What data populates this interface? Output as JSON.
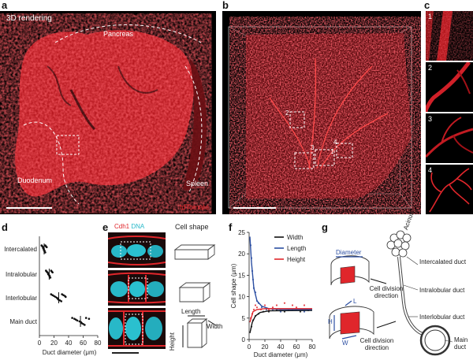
{
  "panels": {
    "a": {
      "label": "a",
      "title": "3D rendering",
      "pancreas": "Pancreas",
      "duodenum": "Duodenum",
      "spleen": "Spleen",
      "marker": "tdTomato"
    },
    "b": {
      "label": "b",
      "roi1": "1",
      "roi2": "2",
      "roi3": "3",
      "roi4": "4"
    },
    "c": {
      "label": "c",
      "insets": [
        "1",
        "2",
        "3",
        "4"
      ]
    },
    "d": {
      "label": "d"
    },
    "e": {
      "label": "e",
      "stain_cdh1": "Cdh1",
      "stain_dna": "DNA",
      "cell_shape": "Cell shape",
      "length": "Length",
      "width": "Width",
      "height": "Height"
    },
    "f": {
      "label": "f"
    },
    "g": {
      "label": "g",
      "diameter": "Diameter",
      "division1": "Cell division direction",
      "division2": "Cell division direction",
      "L": "L",
      "H": "H",
      "W": "W",
      "acinus": "Acinus",
      "intercalated": "Intercalated duct",
      "intralobular": "Intralobular duct",
      "interlobular": "Interlobular duct",
      "main": "Main duct"
    }
  },
  "chart_data": [
    {
      "type": "scatter",
      "panel": "d",
      "categories": [
        "Intercalated",
        "Intralobular",
        "Interlobular",
        "Main duct"
      ],
      "xlabel": "Duct diameter (μm)",
      "xlim": [
        0,
        80
      ],
      "xticks": [
        0,
        20,
        40,
        60,
        80
      ],
      "series": [
        {
          "category": "Intercalated",
          "values": [
            3,
            4,
            5,
            5,
            6,
            6,
            7,
            7,
            8,
            8,
            9,
            10
          ]
        },
        {
          "category": "Intralobular",
          "values": [
            9,
            10,
            11,
            12,
            12,
            13,
            14,
            14,
            15,
            16,
            17,
            18
          ]
        },
        {
          "category": "Interlobular",
          "values": [
            16,
            18,
            20,
            22,
            24,
            25,
            26,
            28,
            30,
            31,
            33,
            35,
            36
          ]
        },
        {
          "category": "Main duct",
          "values": [
            45,
            48,
            50,
            52,
            55,
            57,
            58,
            60,
            62,
            64,
            68
          ]
        }
      ]
    },
    {
      "type": "scatter",
      "panel": "f",
      "xlabel": "Duct diameter (μm)",
      "ylabel": "Cell shape (μm)",
      "xlim": [
        0,
        80
      ],
      "ylim": [
        0,
        25
      ],
      "xticks": [
        0,
        20,
        40,
        60,
        80
      ],
      "yticks": [
        0,
        5,
        10,
        15,
        20,
        25
      ],
      "legend": "top-right",
      "series": [
        {
          "name": "Width",
          "color": "#111111",
          "points": [
            [
              3,
              3
            ],
            [
              5,
              4.5
            ],
            [
              8,
              5.5
            ],
            [
              12,
              6
            ],
            [
              18,
              6.5
            ],
            [
              25,
              6.5
            ],
            [
              35,
              6.8
            ],
            [
              45,
              6.5
            ],
            [
              55,
              7
            ],
            [
              65,
              6.5
            ],
            [
              75,
              6.8
            ]
          ],
          "fit": [
            [
              1,
              1.5
            ],
            [
              4,
              4
            ],
            [
              8,
              5.5
            ],
            [
              14,
              6.3
            ],
            [
              25,
              6.7
            ],
            [
              80,
              6.8
            ]
          ]
        },
        {
          "name": "Length",
          "color": "#2b4ea2",
          "points": [
            [
              2,
              22
            ],
            [
              3,
              19
            ],
            [
              4,
              16
            ],
            [
              5,
              14
            ],
            [
              6,
              12
            ],
            [
              8,
              11
            ],
            [
              10,
              9
            ],
            [
              12,
              8.5
            ],
            [
              16,
              7.5
            ],
            [
              22,
              7
            ],
            [
              30,
              7
            ],
            [
              40,
              6.5
            ],
            [
              50,
              7
            ],
            [
              60,
              7
            ],
            [
              70,
              6.5
            ]
          ],
          "fit": [
            [
              1,
              24
            ],
            [
              3,
              18
            ],
            [
              6,
              12
            ],
            [
              10,
              9
            ],
            [
              16,
              7.8
            ],
            [
              25,
              7.2
            ],
            [
              40,
              7
            ],
            [
              80,
              7
            ]
          ]
        },
        {
          "name": "Height",
          "color": "#e0262b",
          "points": [
            [
              2,
              5
            ],
            [
              4,
              6
            ],
            [
              6,
              7
            ],
            [
              8,
              8
            ],
            [
              10,
              7.5
            ],
            [
              15,
              7
            ],
            [
              20,
              8
            ],
            [
              25,
              7
            ],
            [
              30,
              7.5
            ],
            [
              35,
              8
            ],
            [
              40,
              7
            ],
            [
              45,
              8.5
            ],
            [
              50,
              7
            ],
            [
              55,
              8
            ],
            [
              60,
              7.5
            ],
            [
              65,
              7
            ],
            [
              70,
              8
            ],
            [
              75,
              7
            ]
          ],
          "fit": [
            [
              1,
              4
            ],
            [
              5,
              6.5
            ],
            [
              10,
              7
            ],
            [
              20,
              7.2
            ],
            [
              80,
              7.2
            ]
          ]
        }
      ]
    }
  ]
}
